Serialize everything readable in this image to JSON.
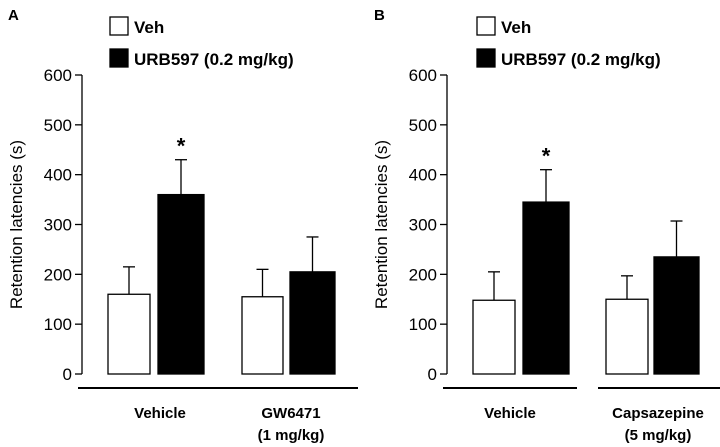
{
  "chart_data": [
    {
      "type": "bar",
      "panel_label": "A",
      "ylabel": "Retention latencies (s)",
      "ylim": [
        0,
        600
      ],
      "yticks": [
        "0",
        "100",
        "200",
        "300",
        "400",
        "500",
        "600"
      ],
      "legend": [
        {
          "name": "Veh",
          "color": "#ffffff"
        },
        {
          "name": "URB597 (0.2 mg/kg)",
          "color": "#000000"
        }
      ],
      "categories": [
        {
          "line1": "Vehicle",
          "line2": ""
        },
        {
          "line1": "GW6471",
          "line2": "(1 mg/kg)"
        }
      ],
      "series": [
        {
          "name": "Veh",
          "color": "#ffffff",
          "values": [
            160,
            155
          ],
          "errors": [
            55,
            55
          ]
        },
        {
          "name": "URB597 (0.2 mg/kg)",
          "color": "#000000",
          "values": [
            360,
            205
          ],
          "errors": [
            70,
            70
          ]
        }
      ],
      "annotations": [
        {
          "text": "*",
          "category": 0,
          "series": 1
        }
      ]
    },
    {
      "type": "bar",
      "panel_label": "B",
      "ylabel": "Retention latencies (s)",
      "ylim": [
        0,
        600
      ],
      "yticks": [
        "0",
        "100",
        "200",
        "300",
        "400",
        "500",
        "600"
      ],
      "legend": [
        {
          "name": "Veh",
          "color": "#ffffff"
        },
        {
          "name": "URB597 (0.2 mg/kg)",
          "color": "#000000"
        }
      ],
      "categories": [
        {
          "line1": "Vehicle",
          "line2": ""
        },
        {
          "line1": "Capsazepine",
          "line2": "(5 mg/kg)"
        }
      ],
      "series": [
        {
          "name": "Veh",
          "color": "#ffffff",
          "values": [
            148,
            150
          ],
          "errors": [
            57,
            47
          ]
        },
        {
          "name": "URB597 (0.2 mg/kg)",
          "color": "#000000",
          "values": [
            345,
            235
          ],
          "errors": [
            65,
            72
          ]
        }
      ],
      "annotations": [
        {
          "text": "*",
          "category": 0,
          "series": 1
        }
      ]
    }
  ]
}
